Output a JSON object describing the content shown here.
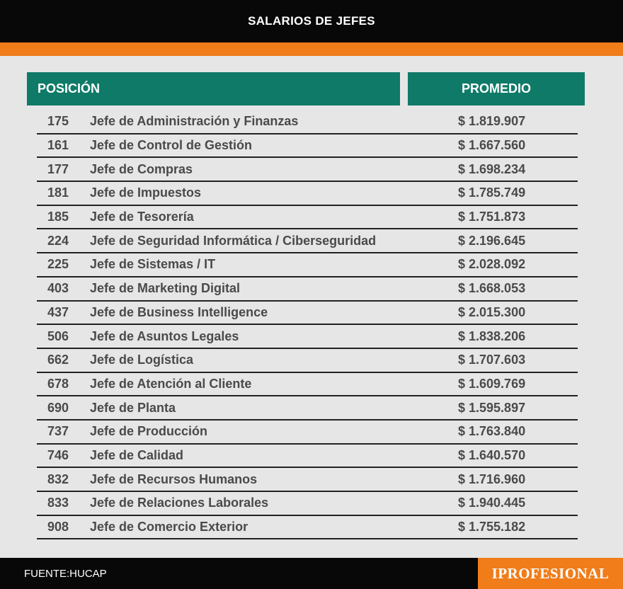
{
  "title": "SALARIOS DE JEFES",
  "headers": {
    "position": "POSICIÓN",
    "average": "PROMEDIO"
  },
  "footer": {
    "source": "FUENTE:HUCAP",
    "logo": "IPROFESIONAL"
  },
  "colors": {
    "header_teal": "#0f7a68",
    "accent_orange": "#f07d1a",
    "bar_black": "#080808",
    "background": "#e6e6e6"
  },
  "chart_data": {
    "type": "table",
    "title": "SALARIOS DE JEFES",
    "columns": [
      "POSICIÓN",
      "PROMEDIO"
    ],
    "rows": [
      {
        "rank": "175",
        "position": "Jefe de Administración y Finanzas",
        "average": "$ 1.819.907"
      },
      {
        "rank": "161",
        "position": "Jefe de Control de Gestión",
        "average": "$ 1.667.560"
      },
      {
        "rank": "177",
        "position": "Jefe de Compras",
        "average": "$ 1.698.234"
      },
      {
        "rank": "181",
        "position": "Jefe de Impuestos",
        "average": "$ 1.785.749"
      },
      {
        "rank": "185",
        "position": "Jefe de Tesorería",
        "average": "$ 1.751.873"
      },
      {
        "rank": "224",
        "position": "Jefe de Seguridad Informática / Ciberseguridad",
        "average": "$ 2.196.645"
      },
      {
        "rank": "225",
        "position": "Jefe de Sistemas / IT",
        "average": "$ 2.028.092"
      },
      {
        "rank": "403",
        "position": "Jefe de Marketing Digital",
        "average": "$ 1.668.053"
      },
      {
        "rank": "437",
        "position": "Jefe de Business Intelligence",
        "average": "$ 2.015.300"
      },
      {
        "rank": "506",
        "position": "Jefe de Asuntos Legales",
        "average": "$ 1.838.206"
      },
      {
        "rank": "662",
        "position": "Jefe de Logística",
        "average": "$ 1.707.603"
      },
      {
        "rank": "678",
        "position": "Jefe de Atención al Cliente",
        "average": "$ 1.609.769"
      },
      {
        "rank": "690",
        "position": "Jefe de Planta",
        "average": "$ 1.595.897"
      },
      {
        "rank": "737",
        "position": "Jefe de Producción",
        "average": "$ 1.763.840"
      },
      {
        "rank": "746",
        "position": "Jefe de Calidad",
        "average": "$ 1.640.570"
      },
      {
        "rank": "832",
        "position": "Jefe de Recursos Humanos",
        "average": "$ 1.716.960"
      },
      {
        "rank": "833",
        "position": "Jefe de Relaciones Laborales",
        "average": "$ 1.940.445"
      },
      {
        "rank": "908",
        "position": "Jefe de Comercio Exterior",
        "average": "$ 1.755.182"
      }
    ]
  }
}
